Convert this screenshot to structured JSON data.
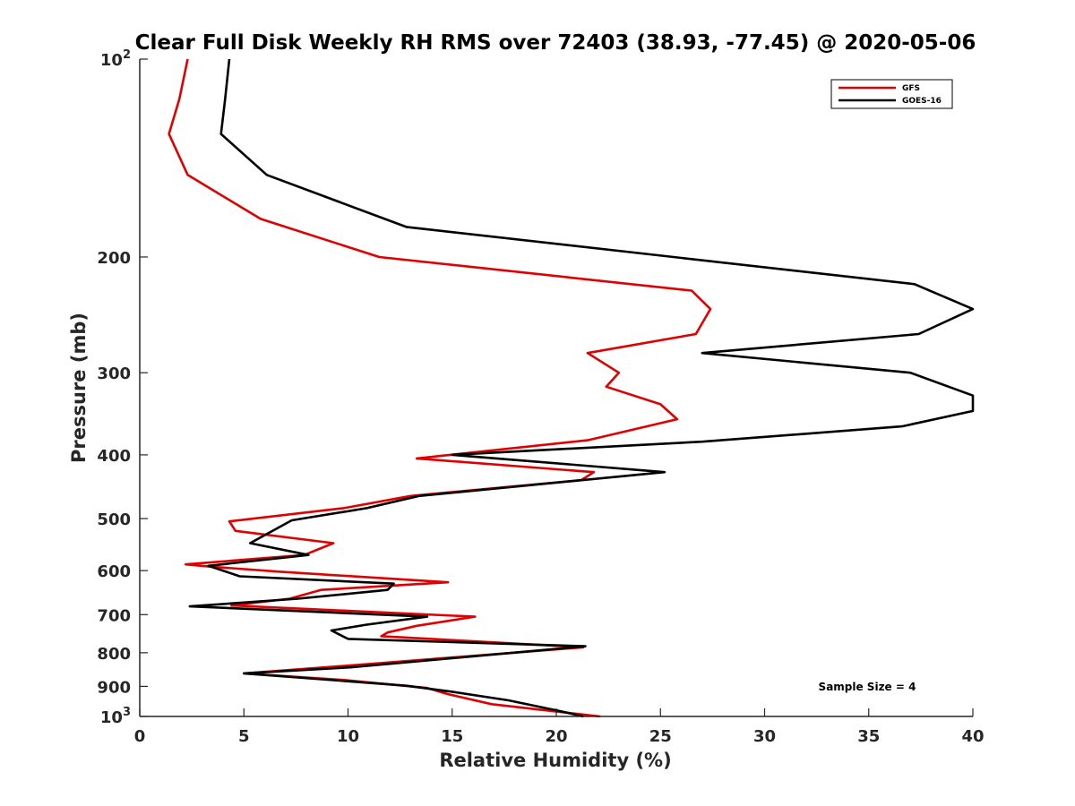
{
  "chart_data": {
    "type": "line",
    "title": "Clear Full Disk Weekly RH RMS over 72403 (38.93, -77.45) @ 2020-05-06",
    "xlabel": "Relative Humidity (%)",
    "ylabel": "Pressure (mb)",
    "xlim": [
      0,
      40
    ],
    "ylim": [
      100,
      1000
    ],
    "yscale": "log",
    "y_reversed": true,
    "grid": false,
    "legend_position": "top-right",
    "x_ticks": [
      0,
      5,
      10,
      15,
      20,
      25,
      30,
      35,
      40
    ],
    "y_ticks": [
      {
        "value": 100,
        "base": "10",
        "exp": "2"
      },
      {
        "value": 200,
        "label": "200"
      },
      {
        "value": 300,
        "label": "300"
      },
      {
        "value": 400,
        "label": "400"
      },
      {
        "value": 500,
        "label": "500"
      },
      {
        "value": 600,
        "label": "600"
      },
      {
        "value": 700,
        "label": "700"
      },
      {
        "value": 800,
        "label": "800"
      },
      {
        "value": 900,
        "label": "900"
      },
      {
        "value": 1000,
        "base": "10",
        "exp": "3"
      }
    ],
    "annotation": "Sample Size = 4",
    "series": [
      {
        "name": "GFS",
        "color": "#e00000",
        "points": [
          [
            2.3,
            100
          ],
          [
            1.9,
            115
          ],
          [
            1.4,
            130
          ],
          [
            2.3,
            150
          ],
          [
            5.8,
            175
          ],
          [
            11.5,
            200
          ],
          [
            26.5,
            225
          ],
          [
            27.4,
            240
          ],
          [
            26.7,
            262
          ],
          [
            21.5,
            280
          ],
          [
            23.0,
            300
          ],
          [
            22.4,
            315
          ],
          [
            25.0,
            335
          ],
          [
            25.8,
            353
          ],
          [
            21.5,
            380
          ],
          [
            13.3,
            405
          ],
          [
            21.8,
            425
          ],
          [
            21.2,
            437
          ],
          [
            13.0,
            462
          ],
          [
            9.8,
            482
          ],
          [
            4.3,
            505
          ],
          [
            4.6,
            522
          ],
          [
            9.3,
            545
          ],
          [
            7.9,
            568
          ],
          [
            2.2,
            587
          ],
          [
            3.5,
            592
          ],
          [
            6.6,
            602
          ],
          [
            14.8,
            625
          ],
          [
            8.7,
            642
          ],
          [
            7.2,
            662
          ],
          [
            4.4,
            678
          ],
          [
            16.1,
            705
          ],
          [
            13.3,
            728
          ],
          [
            11.9,
            745
          ],
          [
            11.6,
            755
          ],
          [
            21.3,
            785
          ],
          [
            16.8,
            805
          ],
          [
            11.5,
            830
          ],
          [
            5.0,
            860
          ],
          [
            9.8,
            880
          ],
          [
            13.8,
            905
          ],
          [
            14.8,
            925
          ],
          [
            16.9,
            958
          ],
          [
            22.1,
            1000
          ]
        ]
      },
      {
        "name": "GOES-16",
        "color": "#000000",
        "points": [
          [
            4.3,
            100
          ],
          [
            4.1,
            115
          ],
          [
            3.9,
            130
          ],
          [
            6.1,
            150
          ],
          [
            12.8,
            180
          ],
          [
            37.2,
            220
          ],
          [
            40.0,
            240
          ],
          [
            37.4,
            262
          ],
          [
            27.0,
            280
          ],
          [
            37.0,
            300
          ],
          [
            40.0,
            325
          ],
          [
            40.0,
            343
          ],
          [
            36.6,
            362
          ],
          [
            27.0,
            382
          ],
          [
            15.0,
            400
          ],
          [
            25.2,
            425
          ],
          [
            13.4,
            462
          ],
          [
            10.9,
            482
          ],
          [
            7.3,
            503
          ],
          [
            5.3,
            545
          ],
          [
            8.1,
            568
          ],
          [
            3.3,
            590
          ],
          [
            4.8,
            612
          ],
          [
            12.2,
            628
          ],
          [
            11.9,
            642
          ],
          [
            7.6,
            662
          ],
          [
            2.4,
            680
          ],
          [
            13.8,
            705
          ],
          [
            10.9,
            725
          ],
          [
            9.2,
            740
          ],
          [
            10.0,
            762
          ],
          [
            21.4,
            782
          ],
          [
            10.1,
            842
          ],
          [
            5.0,
            860
          ],
          [
            12.8,
            898
          ],
          [
            15.0,
            917
          ],
          [
            17.7,
            945
          ],
          [
            20.1,
            980
          ],
          [
            21.3,
            1000
          ]
        ]
      }
    ]
  }
}
